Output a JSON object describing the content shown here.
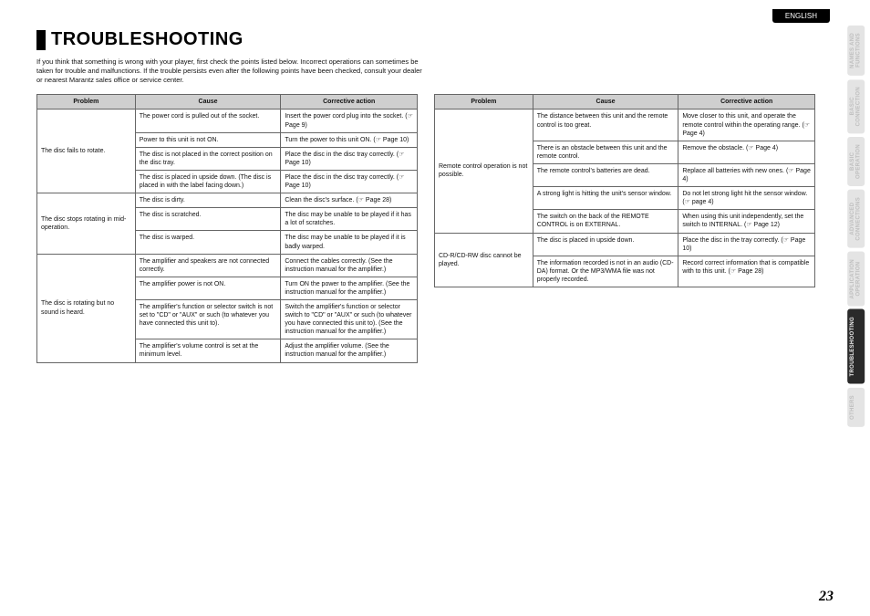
{
  "language_tab": "ENGLISH",
  "title": "TROUBLESHOOTING",
  "intro": "If you think that something is wrong with your player, first check the points listed below. Incorrect operations can sometimes be taken for trouble and malfunctions. If the trouble persists even after the following points have been checked, consult your dealer or nearest Marantz sales office or service center.",
  "page_number": "23",
  "headers": {
    "problem": "Problem",
    "cause": "Cause",
    "action": "Corrective action"
  },
  "side_tabs": [
    {
      "label": "NAMES AND\nFUNCTIONS",
      "active": false
    },
    {
      "label": "BASIC\nCONNECTION",
      "active": false
    },
    {
      "label": "BASIC\nOPERATION",
      "active": false
    },
    {
      "label": "ADVANCED\nCONNECTIONS",
      "active": false
    },
    {
      "label": "APPLICATION\nOPERATION",
      "active": false
    },
    {
      "label": "TROUBLESHOOTING",
      "active": true
    },
    {
      "label": "OTHERS",
      "active": false
    }
  ],
  "t1": {
    "g1": {
      "problem": "The disc fails to rotate.",
      "r1c": "The power cord is pulled out of the socket.",
      "r1a": "Insert the power cord plug into the socket. (☞ Page 9)",
      "r2c": "Power to this unit is not ON.",
      "r2a": "Turn the power to this unit ON. (☞ Page 10)",
      "r3c": "The disc is not placed in the correct position on the disc tray.",
      "r3a": "Place the disc in the disc tray correctly. (☞ Page 10)",
      "r4c": "The disc is placed in upside down. (The disc is placed in with the label facing down.)",
      "r4a": "Place the disc in the disc tray correctly. (☞ Page 10)"
    },
    "g2": {
      "problem": "The disc stops rotating in mid-operation.",
      "r1c": "The disc is dirty.",
      "r1a": "Clean the disc's surface. (☞ Page 28)",
      "r2c": "The disc is scratched.",
      "r2a": "The disc may be unable to be played if it has a lot of scratches.",
      "r3c": "The disc is warped.",
      "r3a": "The disc may be unable to be played if it is badly warped."
    },
    "g3": {
      "problem": "The disc is rotating but no sound is heard.",
      "r1c": "The amplifier and speakers are not connected correctly.",
      "r1a": "Connect the cables correctly. (See the instruction manual for the amplifier.)",
      "r2c": "The amplifier power is not ON.",
      "r2a": "Turn ON the power to the amplifier. (See the instruction manual for the amplifier.)",
      "r3c": "The amplifier's function or selector switch is not set to \"CD\" or \"AUX\" or such (to whatever you have connected this unit to).",
      "r3a": "Switch the amplifier's function or selector switch to \"CD\" or \"AUX\" or such (to whatever you have connected this unit to). (See the instruction manual for the amplifier.)",
      "r4c": "The amplifier's volume control is set at the minimum level.",
      "r4a": "Adjust the amplifier volume. (See the instruction manual for the amplifier.)"
    }
  },
  "t2": {
    "g1": {
      "problem": "Remote control operation is not possible.",
      "r1c": "The distance between this unit and the remote control is too great.",
      "r1a": "Move closer to this unit, and operate the remote control within the operating range. (☞ Page 4)",
      "r2c": "There is an obstacle between this unit and the remote control.",
      "r2a": "Remove the obstacle. (☞ Page 4)",
      "r3c": "The remote control's batteries are dead.",
      "r3a": "Replace all batteries with new ones. (☞ Page 4)",
      "r4c": "A strong light is hitting the unit's sensor window.",
      "r4a": "Do not let strong light hit the sensor window. (☞ page 4)",
      "r5c": "The switch on the back of the REMOTE CONTROL is on EXTERNAL.",
      "r5a": "When using this unit independently, set the switch to INTERNAL. (☞ Page 12)"
    },
    "g2": {
      "problem": "CD-R/CD-RW disc cannot be played.",
      "r1c": "The disc is placed in upside down.",
      "r1a": "Place the disc in the tray correctly. (☞ Page 10)",
      "r2c": "The information recorded is not in an audio (CD-DA) format. Or the MP3/WMA file was not properly recorded.",
      "r2a": "Record correct information that is compatible with to this unit. (☞ Page 28)"
    }
  }
}
